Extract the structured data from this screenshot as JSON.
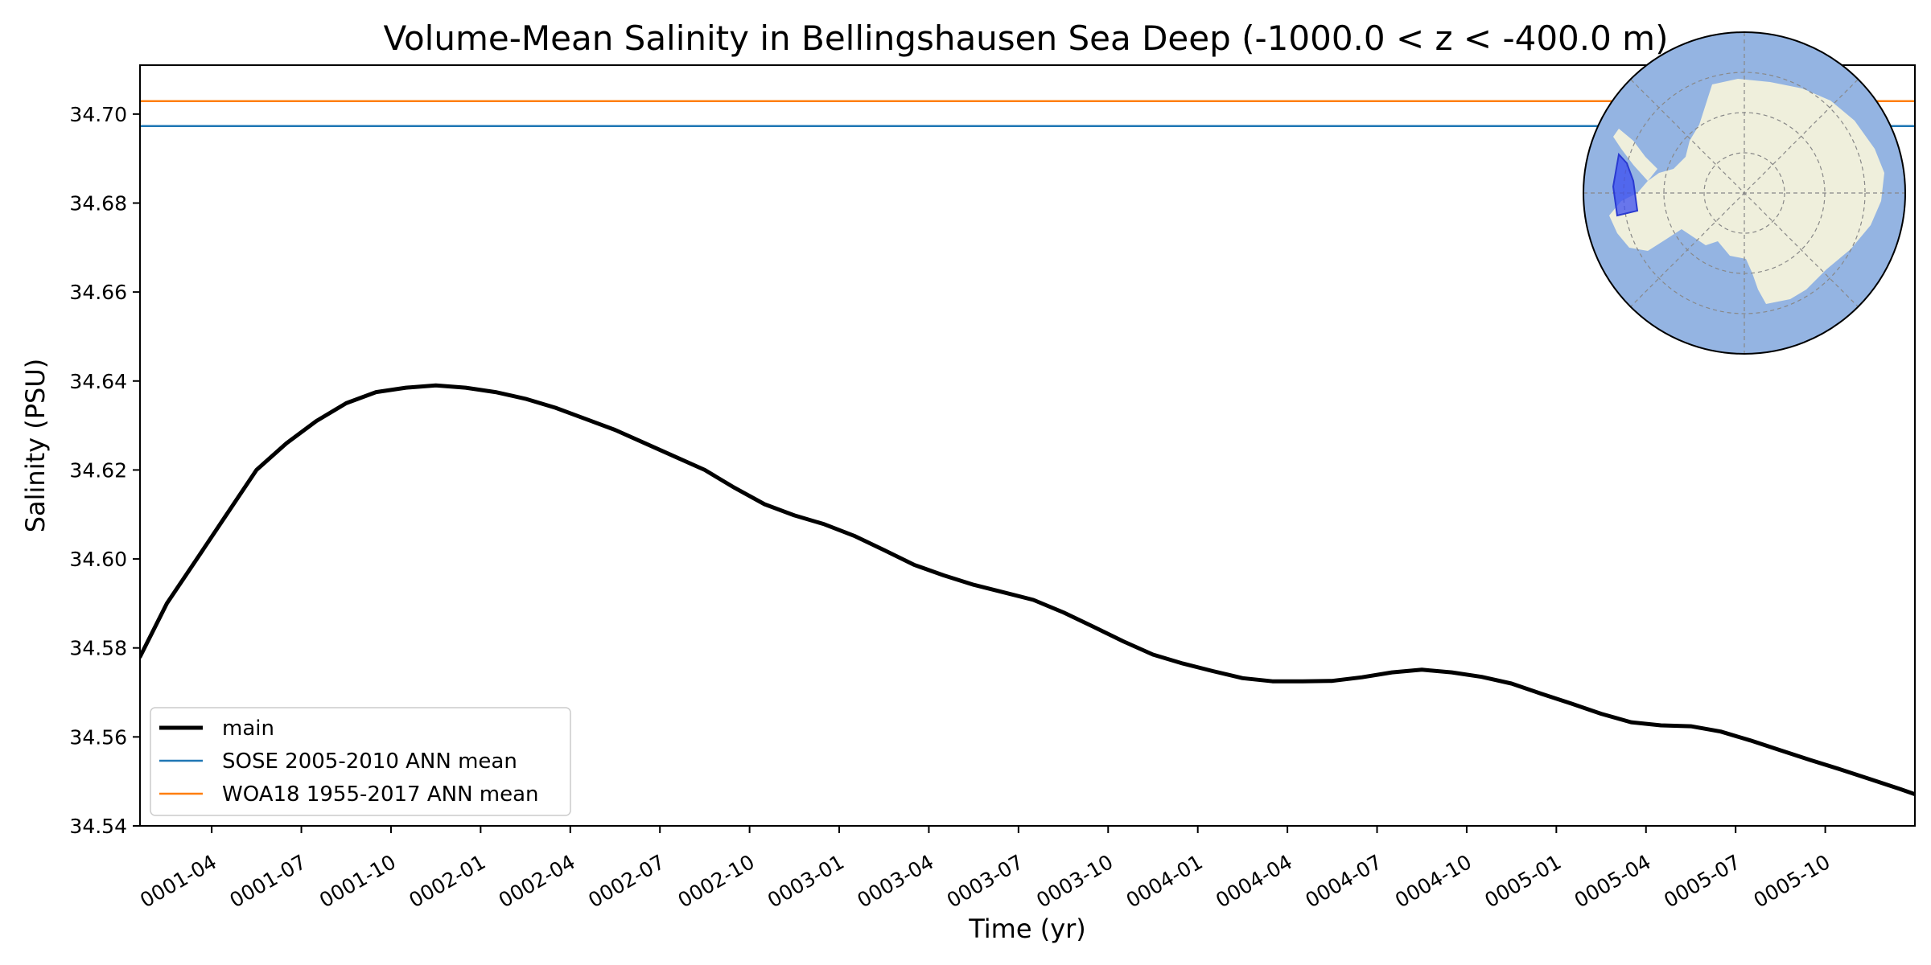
{
  "chart_data": {
    "type": "line",
    "title": "Volume-Mean Salinity in Bellingshausen Sea Deep (-1000.0 < z < -400.0 m)",
    "xlabel": "Time (yr)",
    "ylabel": "Salinity (PSU)",
    "xlim_months": [
      0.6,
      60.0
    ],
    "ylim": [
      34.54,
      34.711
    ],
    "yticks": [
      34.54,
      34.56,
      34.58,
      34.6,
      34.62,
      34.64,
      34.66,
      34.68,
      34.7
    ],
    "ytick_labels": [
      "34.54",
      "34.56",
      "34.58",
      "34.60",
      "34.62",
      "34.64",
      "34.66",
      "34.68",
      "34.70"
    ],
    "xticks": [
      {
        "label": "0001-04",
        "month": 3
      },
      {
        "label": "0001-07",
        "month": 6
      },
      {
        "label": "0001-10",
        "month": 9
      },
      {
        "label": "0002-01",
        "month": 12
      },
      {
        "label": "0002-04",
        "month": 15
      },
      {
        "label": "0002-07",
        "month": 18
      },
      {
        "label": "0002-10",
        "month": 21
      },
      {
        "label": "0003-01",
        "month": 24
      },
      {
        "label": "0003-04",
        "month": 27
      },
      {
        "label": "0003-07",
        "month": 30
      },
      {
        "label": "0003-10",
        "month": 33
      },
      {
        "label": "0004-01",
        "month": 36
      },
      {
        "label": "0004-04",
        "month": 39
      },
      {
        "label": "0004-07",
        "month": 42
      },
      {
        "label": "0004-10",
        "month": 45
      },
      {
        "label": "0005-01",
        "month": 48
      },
      {
        "label": "0005-04",
        "month": 51
      },
      {
        "label": "0005-07",
        "month": 54
      },
      {
        "label": "0005-10",
        "month": 57
      }
    ],
    "series": [
      {
        "name": "main",
        "color": "#000000",
        "x_months": [
          0.6,
          1.5,
          2.5,
          3.5,
          4.5,
          5.5,
          6.5,
          7.5,
          8.5,
          9.5,
          10.5,
          11.5,
          12.5,
          13.5,
          14.5,
          15.5,
          16.5,
          17.5,
          18.5,
          19.5,
          20.5,
          21.5,
          22.5,
          23.5,
          24.5,
          25.5,
          26.5,
          27.5,
          28.5,
          29.5,
          30.5,
          31.5,
          32.5,
          33.5,
          34.5,
          35.5,
          36.5,
          37.5,
          38.5,
          39.5,
          40.5,
          41.5,
          42.5,
          43.5,
          44.5,
          45.5,
          46.5,
          47.5,
          48.5,
          49.5,
          50.5,
          51.5,
          52.5,
          53.5,
          54.5,
          55.5,
          56.5,
          57.5,
          58.5,
          59.5,
          60.0
        ],
        "values": [
          34.578,
          34.59,
          34.6,
          34.61,
          34.62,
          34.626,
          34.631,
          34.635,
          34.6375,
          34.6385,
          34.639,
          34.6385,
          34.6375,
          34.636,
          34.634,
          34.6315,
          34.629,
          34.626,
          34.623,
          34.62,
          34.616,
          34.6123,
          34.6098,
          34.6078,
          34.6052,
          34.602,
          34.5987,
          34.5963,
          34.5942,
          34.5925,
          34.5908,
          34.588,
          34.5848,
          34.5815,
          34.5785,
          34.5765,
          34.5748,
          34.5732,
          34.5725,
          34.5725,
          34.5726,
          34.5734,
          34.5745,
          34.5751,
          34.5745,
          34.5735,
          34.572,
          34.5697,
          34.5675,
          34.5652,
          34.5633,
          34.5626,
          34.5624,
          34.5612,
          34.5592,
          34.557,
          34.5548,
          34.5527,
          34.5505,
          34.5483,
          34.5471
        ]
      },
      {
        "name": "SOSE 2005-2010 ANN mean",
        "color": "#1f77b4",
        "constant": 34.6973
      },
      {
        "name": "WOA18 1955-2017 ANN mean",
        "color": "#ff7f0e",
        "constant": 34.7029
      }
    ],
    "legend_position": "lower-left",
    "grid": false
  },
  "inset_map": {
    "description_icon": "antarctica-polar-map-icon",
    "ocean_color": "#94b4e2",
    "land_color": "#efefdc",
    "region_color": "#3b4ef0"
  }
}
